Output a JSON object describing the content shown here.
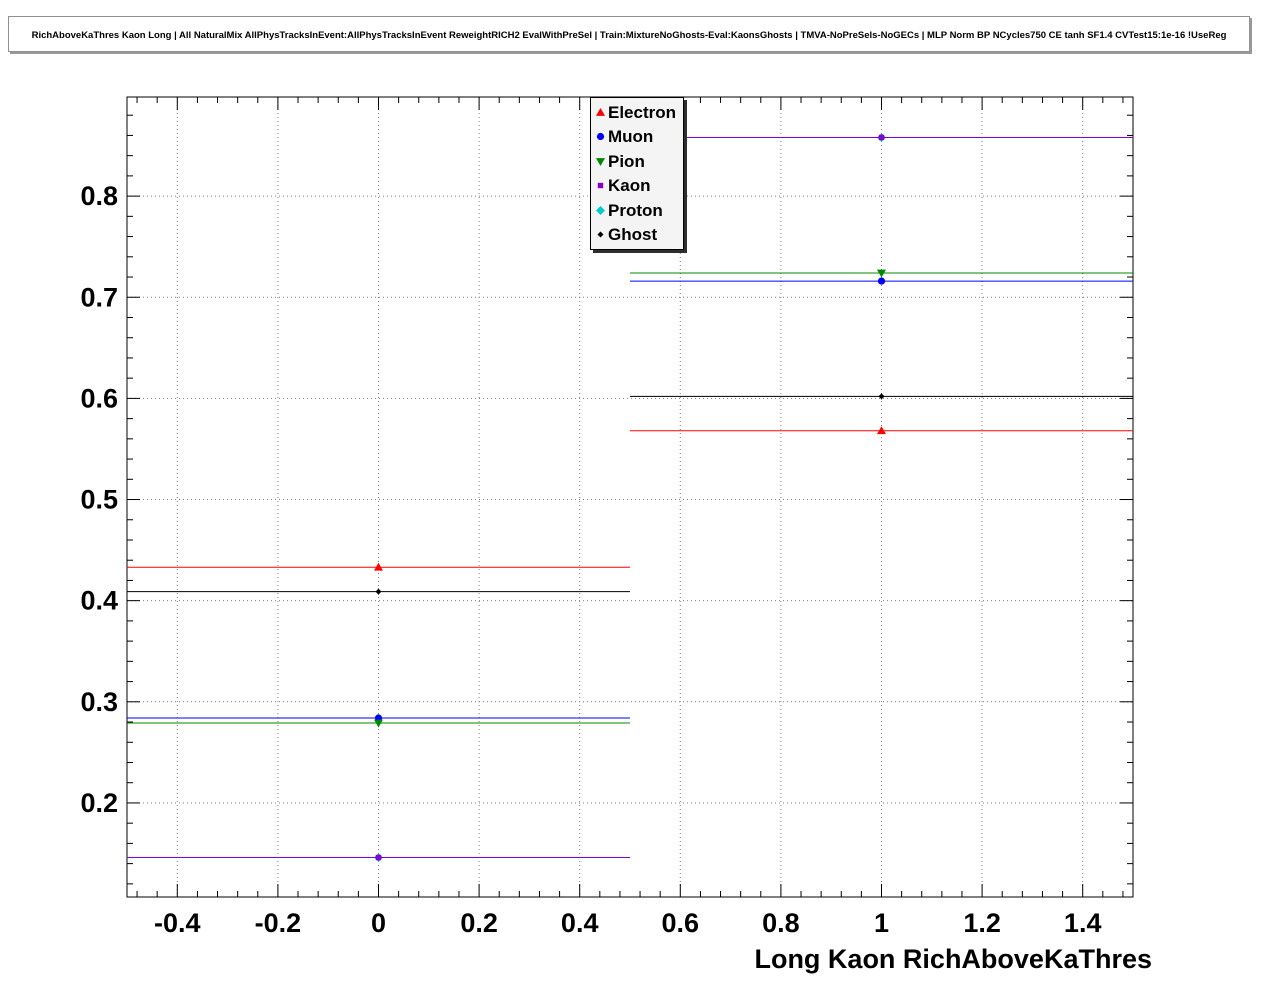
{
  "title": {
    "text": "RichAboveKaThres Kaon Long | All NaturalMix AllPhysTracksInEvent:AllPhysTracksInEvent ReweightRICH2 EvalWithPreSel | Train:MixtureNoGhosts-Eval:KaonsGhosts | TMVA-NoPreSels-NoGECs | MLP Norm BP NCycles750 CE tanh SF1.4 CVTest15:1e-16 !UseReg"
  },
  "chart_data": {
    "type": "line",
    "title": "",
    "xlabel": "Long Kaon RichAboveKaThres",
    "ylabel": "",
    "xlim": [
      -0.5,
      1.5
    ],
    "ylim": [
      0.107,
      0.898
    ],
    "x_ticks": [
      -0.4,
      -0.2,
      0,
      0.2,
      0.4,
      0.6,
      0.8,
      1,
      1.2,
      1.4
    ],
    "x_tick_labels": [
      "-0.4",
      "-0.2",
      "0",
      "0.2",
      "0.4",
      "0.6",
      "0.8",
      "1",
      "1.2",
      "1.4"
    ],
    "x_major_step": 0.2,
    "x_minor_step": 0.04,
    "y_ticks": [
      0.2,
      0.3,
      0.4,
      0.5,
      0.6,
      0.7,
      0.8
    ],
    "y_tick_labels": [
      "0.2",
      "0.3",
      "0.4",
      "0.5",
      "0.6",
      "0.7",
      "0.8"
    ],
    "y_major_step": 0.1,
    "y_minor_step": 0.02,
    "grid": true,
    "grid_style": "dotted",
    "legend_position": "top-middle",
    "bin_centers": [
      0,
      1
    ],
    "bin_half_width": 0.5,
    "series": [
      {
        "name": "Electron",
        "color": "#ff0000",
        "marker": "triangle-up",
        "values": [
          0.433,
          0.568
        ],
        "yerr": [
          0.003,
          0.003
        ]
      },
      {
        "name": "Muon",
        "color": "#0000ff",
        "marker": "circle",
        "values": [
          0.284,
          0.716
        ],
        "yerr": [
          0.003,
          0.003
        ]
      },
      {
        "name": "Pion",
        "color": "#008800",
        "marker": "triangle-down",
        "values": [
          0.279,
          0.724
        ],
        "yerr": [
          0.003,
          0.003
        ]
      },
      {
        "name": "Kaon",
        "color": "#8800cc",
        "marker": "square",
        "values": [
          0.146,
          0.858
        ],
        "yerr": [
          0.003,
          0.003
        ]
      },
      {
        "name": "Proton",
        "color": "#00cccc",
        "marker": "diamond",
        "values": [
          0.146,
          0.858
        ],
        "yerr": [
          0.003,
          0.003
        ]
      },
      {
        "name": "Ghost",
        "color": "#000000",
        "marker": "diamond-small",
        "values": [
          0.409,
          0.602
        ],
        "yerr": [
          0.003,
          0.003
        ]
      }
    ],
    "draw_order": [
      "Electron",
      "Muon",
      "Pion",
      "Proton",
      "Ghost",
      "Kaon"
    ]
  }
}
